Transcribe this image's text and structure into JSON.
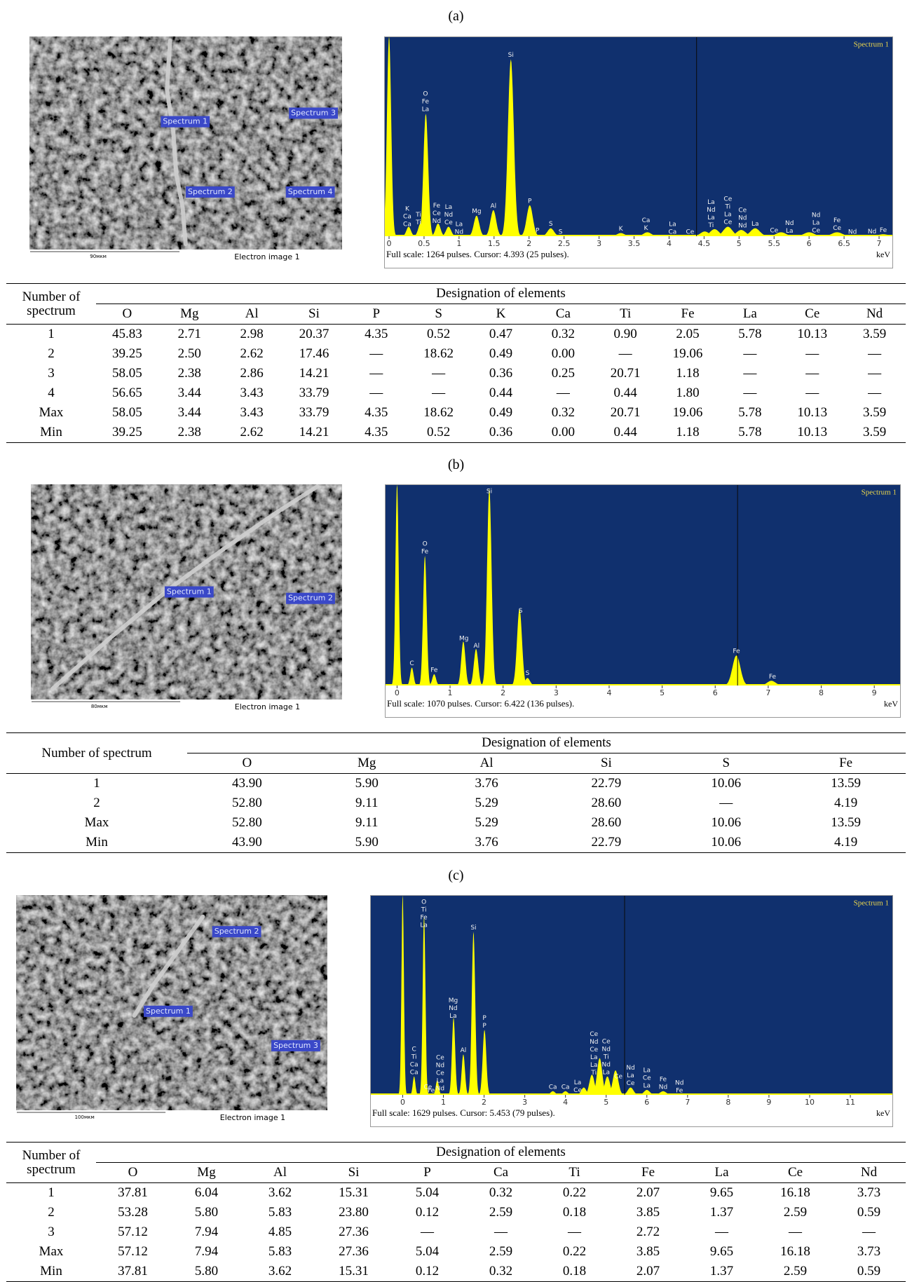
{
  "panels": [
    {
      "label": "(a)",
      "image": {
        "spectra": [
          "Spectrum 1",
          "Spectrum 2",
          "Spectrum 3",
          "Spectrum 4"
        ],
        "scale": "90мкм",
        "caption": "Electron image 1"
      },
      "spectrum": {
        "title": "Spectrum 1",
        "caption": "Full scale: 1264 pulses. Cursor: 4.393 (25 pulses).",
        "x_unit": "keV",
        "xlim": [
          -0.07,
          7.2
        ],
        "xticks": [
          0,
          0.5,
          1,
          1.5,
          2,
          2.5,
          3,
          3.5,
          4,
          4.5,
          5,
          5.5,
          6,
          6.5,
          7
        ],
        "ylim": [
          0,
          1264
        ],
        "cursor": 4.393,
        "peaks": {
          "x": [
            0,
            0.28,
            0.45,
            0.525,
            0.7,
            0.85,
            1.25,
            1.49,
            1.74,
            2.01,
            2.31,
            3.31,
            3.69,
            4.51,
            4.65,
            4.84,
            5.03,
            5.23,
            5.6,
            6.0,
            6.4,
            7.06
          ],
          "y": [
            1264,
            60,
            80,
            775,
            80,
            60,
            130,
            165,
            1120,
            196,
            50,
            20,
            25,
            30,
            45,
            60,
            40,
            50,
            25,
            25,
            25,
            12
          ]
        },
        "peak_labels": [
          {
            "x": 0.26,
            "labels": [
              "K",
              "Ca",
              "Ca"
            ]
          },
          {
            "x": 0.42,
            "labels": [
              "Ti",
              "Ti"
            ]
          },
          {
            "x": 0.52,
            "labels": [
              "O",
              "Fe",
              "La"
            ]
          },
          {
            "x": 0.68,
            "labels": [
              "Fe",
              "Ce",
              "Nd"
            ]
          },
          {
            "x": 0.85,
            "labels": [
              "La",
              "Nd",
              "Ce"
            ]
          },
          {
            "x": 1.0,
            "labels": [
              "La",
              "Nd"
            ]
          },
          {
            "x": 1.25,
            "labels": [
              "Mg"
            ]
          },
          {
            "x": 1.49,
            "labels": [
              "Al"
            ]
          },
          {
            "x": 1.74,
            "labels": [
              "Si"
            ]
          },
          {
            "x": 2.01,
            "labels": [
              "P"
            ]
          },
          {
            "x": 2.12,
            "labels": [
              "P"
            ]
          },
          {
            "x": 2.31,
            "labels": [
              "S"
            ]
          },
          {
            "x": 2.45,
            "labels": [
              "S"
            ]
          },
          {
            "x": 3.31,
            "labels": [
              "K"
            ]
          },
          {
            "x": 3.67,
            "labels": [
              "Ca",
              "K"
            ]
          },
          {
            "x": 4.05,
            "labels": [
              "La",
              "Ca"
            ]
          },
          {
            "x": 4.3,
            "labels": [
              "Ce"
            ]
          },
          {
            "x": 4.6,
            "labels": [
              "La",
              "Nd",
              "La",
              "Ti"
            ]
          },
          {
            "x": 4.84,
            "labels": [
              "Ce",
              "Ti",
              "La",
              "Ce"
            ]
          },
          {
            "x": 5.05,
            "labels": [
              "Ce",
              "Nd",
              "Nd"
            ]
          },
          {
            "x": 5.23,
            "labels": [
              "La"
            ]
          },
          {
            "x": 5.5,
            "labels": [
              "Ce"
            ]
          },
          {
            "x": 5.72,
            "labels": [
              "Nd",
              "La"
            ]
          },
          {
            "x": 6.1,
            "labels": [
              "Nd",
              "La",
              "Ce"
            ]
          },
          {
            "x": 6.4,
            "labels": [
              "Fe",
              "Ce"
            ]
          },
          {
            "x": 6.62,
            "labels": [
              "Nd"
            ]
          },
          {
            "x": 6.9,
            "labels": [
              "Nd"
            ]
          },
          {
            "x": 7.06,
            "labels": [
              "Fe"
            ]
          }
        ]
      },
      "table": {
        "row_header": "Number of spectrum",
        "group_header": "Designation of elements",
        "columns": [
          "O",
          "Mg",
          "Al",
          "Si",
          "P",
          "S",
          "K",
          "Ca",
          "Ti",
          "Fe",
          "La",
          "Ce",
          "Nd"
        ],
        "rows": [
          [
            "1",
            "45.83",
            "2.71",
            "2.98",
            "20.37",
            "4.35",
            "0.52",
            "0.47",
            "0.32",
            "0.90",
            "2.05",
            "5.78",
            "10.13",
            "3.59"
          ],
          [
            "2",
            "39.25",
            "2.50",
            "2.62",
            "17.46",
            "—",
            "18.62",
            "0.49",
            "0.00",
            "—",
            "19.06",
            "—",
            "—",
            "—"
          ],
          [
            "3",
            "58.05",
            "2.38",
            "2.86",
            "14.21",
            "—",
            "—",
            "0.36",
            "0.25",
            "20.71",
            "1.18",
            "—",
            "—",
            "—"
          ],
          [
            "4",
            "56.65",
            "3.44",
            "3.43",
            "33.79",
            "—",
            "—",
            "0.44",
            "—",
            "0.44",
            "1.80",
            "—",
            "—",
            "—"
          ],
          [
            "Max",
            "58.05",
            "3.44",
            "3.43",
            "33.79",
            "4.35",
            "18.62",
            "0.49",
            "0.32",
            "20.71",
            "19.06",
            "5.78",
            "10.13",
            "3.59"
          ],
          [
            "Min",
            "39.25",
            "2.38",
            "2.62",
            "14.21",
            "4.35",
            "0.52",
            "0.36",
            "0.00",
            "0.44",
            "1.18",
            "5.78",
            "10.13",
            "3.59"
          ]
        ]
      }
    },
    {
      "label": "(b)",
      "image": {
        "spectra": [
          "Spectrum 1",
          "Spectrum 2"
        ],
        "scale": "80мкм",
        "caption": "Electron image 1"
      },
      "spectrum": {
        "title": "Spectrum 1",
        "caption": "Full scale: 1070 pulses. Cursor: 6.422 (136 pulses).",
        "x_unit": "keV",
        "xlim": [
          -0.23,
          9.5
        ],
        "xticks": [
          0,
          1,
          2,
          3,
          4,
          5,
          6,
          7,
          8,
          9
        ],
        "ylim": [
          0,
          1070
        ],
        "cursor": 6.422,
        "peaks": {
          "x": [
            0,
            0.28,
            0.525,
            0.7,
            1.25,
            1.49,
            1.74,
            2.31,
            2.46,
            6.4,
            7.06
          ],
          "y": [
            1070,
            95,
            690,
            60,
            235,
            195,
            1050,
            410,
            40,
            160,
            25
          ]
        },
        "peak_labels": [
          {
            "x": 0.28,
            "labels": [
              "C"
            ]
          },
          {
            "x": 0.525,
            "labels": [
              "O",
              "Fe"
            ]
          },
          {
            "x": 0.7,
            "labels": [
              "Fe"
            ]
          },
          {
            "x": 1.26,
            "labels": [
              "Mg"
            ]
          },
          {
            "x": 1.5,
            "labels": [
              "Al"
            ]
          },
          {
            "x": 1.74,
            "labels": [
              "Si"
            ]
          },
          {
            "x": 2.33,
            "labels": [
              "S"
            ]
          },
          {
            "x": 2.46,
            "labels": [
              "S"
            ]
          },
          {
            "x": 6.4,
            "labels": [
              "Fe"
            ]
          },
          {
            "x": 7.08,
            "labels": [
              "Fe"
            ]
          }
        ]
      },
      "table": {
        "row_header": "Number of spectrum",
        "group_header": "Designation of elements",
        "columns": [
          "O",
          "Mg",
          "Al",
          "Si",
          "S",
          "Fe"
        ],
        "rows": [
          [
            "1",
            "43.90",
            "5.90",
            "3.76",
            "22.79",
            "10.06",
            "13.59"
          ],
          [
            "2",
            "52.80",
            "9.11",
            "5.29",
            "28.60",
            "—",
            "4.19"
          ],
          [
            "Max",
            "52.80",
            "9.11",
            "5.29",
            "28.60",
            "10.06",
            "13.59"
          ],
          [
            "Min",
            "43.90",
            "5.90",
            "3.76",
            "22.79",
            "10.06",
            "4.19"
          ]
        ]
      }
    },
    {
      "label": "(c)",
      "image": {
        "spectra": [
          "Spectrum 1",
          "Spectrum 2",
          "Spectrum 3"
        ],
        "scale": "100мкм",
        "caption": "Electron image 1"
      },
      "spectrum": {
        "title": "Spectrum 1",
        "caption": "Full scale: 1629 pulses. Cursor: 5.453 (79 pulses).",
        "x_unit": "keV",
        "xlim": [
          -0.8,
          12.05
        ],
        "xticks": [
          0,
          1,
          2,
          3,
          4,
          5,
          6,
          7,
          8,
          9,
          10,
          11
        ],
        "ylim": [
          0,
          1629
        ],
        "cursor": 5.453,
        "peaks": {
          "x": [
            0,
            0.28,
            0.525,
            0.85,
            1.25,
            1.49,
            1.74,
            2.01,
            3.69,
            4.0,
            4.45,
            4.65,
            4.84,
            5.03,
            5.23,
            5.6,
            6.0,
            6.4
          ],
          "y": [
            1629,
            150,
            1460,
            120,
            630,
            330,
            1330,
            530,
            30,
            30,
            60,
            165,
            300,
            150,
            200,
            60,
            40,
            30
          ]
        },
        "peak_labels": [
          {
            "x": 0.28,
            "labels": [
              "C",
              "Ti",
              "Ca",
              "Ca"
            ]
          },
          {
            "x": 0.52,
            "labels": [
              "O",
              "Ti",
              "Fe",
              "La"
            ]
          },
          {
            "x": 0.62,
            "labels": [
              "Ce"
            ]
          },
          {
            "x": 0.7,
            "labels": [
              "Fe"
            ]
          },
          {
            "x": 0.92,
            "labels": [
              "Ce",
              "Nd",
              "Ce",
              "La",
              "Nd"
            ]
          },
          {
            "x": 1.24,
            "labels": [
              "Mg",
              "Nd",
              "La"
            ]
          },
          {
            "x": 1.49,
            "labels": [
              "Al"
            ]
          },
          {
            "x": 1.74,
            "labels": [
              "Si"
            ]
          },
          {
            "x": 2.01,
            "labels": [
              "P",
              "P"
            ]
          },
          {
            "x": 3.69,
            "labels": [
              "Ca"
            ]
          },
          {
            "x": 4.0,
            "labels": [
              "Ca"
            ]
          },
          {
            "x": 4.3,
            "labels": [
              "La",
              "Ce"
            ]
          },
          {
            "x": 4.7,
            "labels": [
              "Ce",
              "Nd",
              "Ce",
              "La",
              "La",
              "Ti"
            ]
          },
          {
            "x": 5.0,
            "labels": [
              "Ce",
              "Nd",
              "Ti",
              "Nd",
              "La"
            ]
          },
          {
            "x": 5.3,
            "labels": [
              "Ce"
            ]
          },
          {
            "x": 5.6,
            "labels": [
              "Nd",
              "La",
              "Ce"
            ]
          },
          {
            "x": 6.0,
            "labels": [
              "La",
              "Ce",
              "La"
            ]
          },
          {
            "x": 6.4,
            "labels": [
              "Fe",
              "Nd"
            ]
          },
          {
            "x": 6.8,
            "labels": [
              "Nd",
              "Fe"
            ]
          }
        ]
      },
      "table": {
        "row_header": "Number of spectrum",
        "group_header": "Designation of elements",
        "columns": [
          "O",
          "Mg",
          "Al",
          "Si",
          "P",
          "Ca",
          "Ti",
          "Fe",
          "La",
          "Ce",
          "Nd"
        ],
        "rows": [
          [
            "1",
            "37.81",
            "6.04",
            "3.62",
            "15.31",
            "5.04",
            "0.32",
            "0.22",
            "2.07",
            "9.65",
            "16.18",
            "3.73"
          ],
          [
            "2",
            "53.28",
            "5.80",
            "5.83",
            "23.80",
            "0.12",
            "2.59",
            "0.18",
            "3.85",
            "1.37",
            "2.59",
            "0.59"
          ],
          [
            "3",
            "57.12",
            "7.94",
            "4.85",
            "27.36",
            "—",
            "—",
            "—",
            "2.72",
            "—",
            "—",
            "—"
          ],
          [
            "Max",
            "57.12",
            "7.94",
            "5.83",
            "27.36",
            "5.04",
            "2.59",
            "0.22",
            "3.85",
            "9.65",
            "16.18",
            "3.73"
          ],
          [
            "Min",
            "37.81",
            "5.80",
            "3.62",
            "15.31",
            "0.12",
            "0.32",
            "0.18",
            "2.07",
            "1.37",
            "2.59",
            "0.59"
          ]
        ]
      }
    }
  ]
}
